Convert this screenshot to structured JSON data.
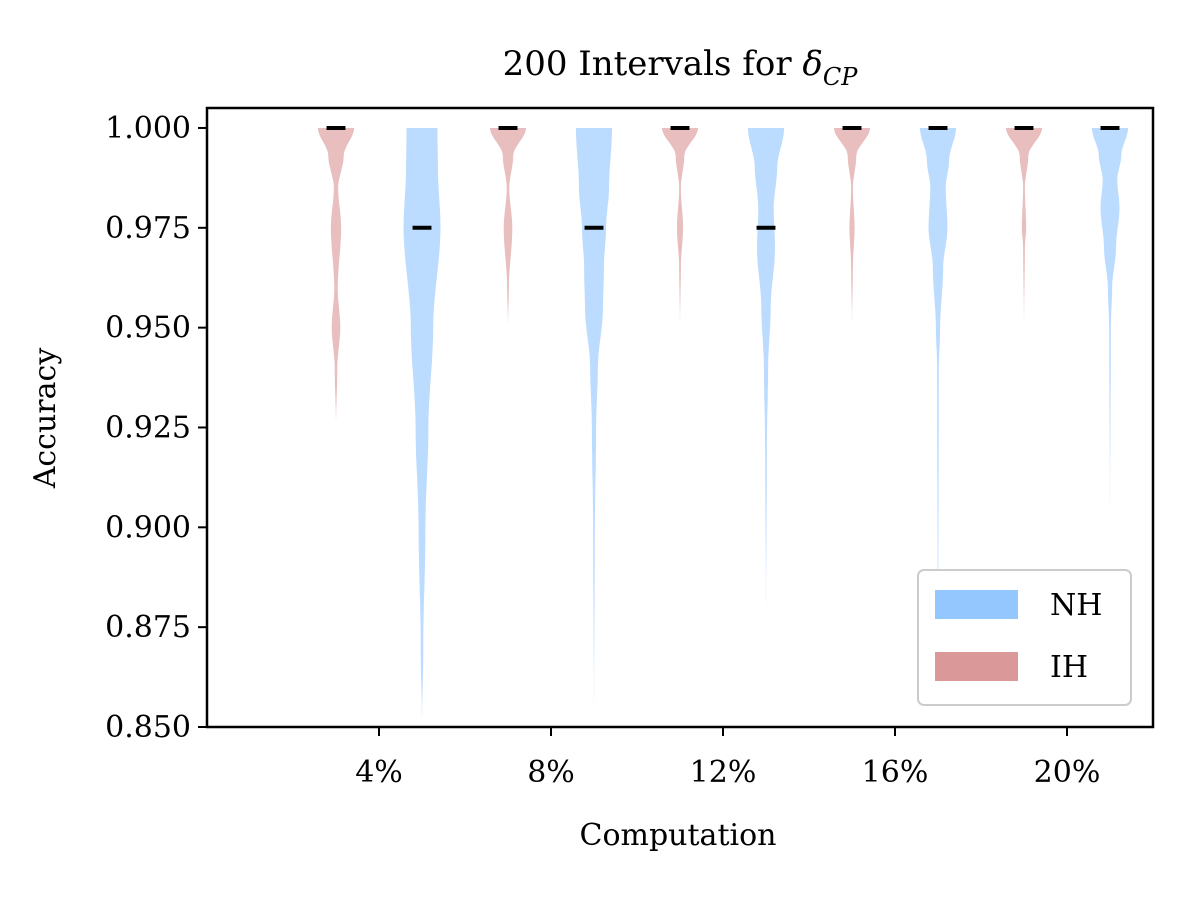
{
  "chart_data": {
    "type": "violin",
    "title_main": "200 Intervals for ",
    "title_symbol": "δ",
    "title_subscript": "CP",
    "xlabel": "Computation",
    "ylabel": "Accuracy",
    "x_ticks": [
      4,
      8,
      12,
      16,
      20
    ],
    "x_tick_labels": [
      "4%",
      "8%",
      "12%",
      "16%",
      "20%"
    ],
    "xlim": [
      0,
      22
    ],
    "ylim": [
      0.85,
      1.005
    ],
    "y_ticks": [
      0.85,
      0.875,
      0.9,
      0.925,
      0.95,
      0.975,
      1.0
    ],
    "y_tick_labels": [
      "0.850",
      "0.875",
      "0.900",
      "0.925",
      "0.950",
      "0.975",
      "1.000"
    ],
    "grid": false,
    "legend_position": "lower-right",
    "series": [
      {
        "name": "NH",
        "color": "#8fc4ff",
        "violins": [
          {
            "x": 5,
            "median": 0.975,
            "profile": [
              [
                0.85,
                0.0
              ],
              [
                0.87,
                0.03
              ],
              [
                0.9,
                0.08
              ],
              [
                0.925,
                0.15
              ],
              [
                0.95,
                0.26
              ],
              [
                0.975,
                0.43
              ],
              [
                0.99,
                0.37
              ],
              [
                1.0,
                0.36
              ]
            ]
          },
          {
            "x": 9,
            "median": 0.975,
            "profile": [
              [
                0.85,
                0.0
              ],
              [
                0.9,
                0.02
              ],
              [
                0.925,
                0.05
              ],
              [
                0.94,
                0.09
              ],
              [
                0.955,
                0.21
              ],
              [
                0.965,
                0.23
              ],
              [
                0.975,
                0.28
              ],
              [
                0.985,
                0.35
              ],
              [
                1.0,
                0.42
              ]
            ]
          },
          {
            "x": 13,
            "median": 0.975,
            "profile": [
              [
                0.875,
                0.0
              ],
              [
                0.92,
                0.02
              ],
              [
                0.94,
                0.05
              ],
              [
                0.955,
                0.11
              ],
              [
                0.97,
                0.21
              ],
              [
                0.98,
                0.18
              ],
              [
                0.99,
                0.26
              ],
              [
                1.0,
                0.42
              ]
            ]
          },
          {
            "x": 17,
            "median": 1.0,
            "profile": [
              [
                0.85,
                0.0
              ],
              [
                0.94,
                0.02
              ],
              [
                0.95,
                0.05
              ],
              [
                0.965,
                0.12
              ],
              [
                0.975,
                0.22
              ],
              [
                0.985,
                0.18
              ],
              [
                0.992,
                0.26
              ],
              [
                1.0,
                0.42
              ]
            ]
          },
          {
            "x": 21,
            "median": 1.0,
            "profile": [
              [
                0.9,
                0.0
              ],
              [
                0.95,
                0.02
              ],
              [
                0.96,
                0.05
              ],
              [
                0.97,
                0.14
              ],
              [
                0.98,
                0.22
              ],
              [
                0.987,
                0.17
              ],
              [
                0.993,
                0.26
              ],
              [
                1.0,
                0.42
              ]
            ]
          }
        ]
      },
      {
        "name": "IH",
        "color": "#d99292",
        "violins": [
          {
            "x": 3,
            "median": 1.0,
            "profile": [
              [
                0.925,
                0.0
              ],
              [
                0.94,
                0.03
              ],
              [
                0.95,
                0.1
              ],
              [
                0.96,
                0.04
              ],
              [
                0.975,
                0.12
              ],
              [
                0.985,
                0.05
              ],
              [
                0.993,
                0.18
              ],
              [
                1.0,
                0.42
              ]
            ]
          },
          {
            "x": 7,
            "median": 1.0,
            "profile": [
              [
                0.95,
                0.0
              ],
              [
                0.96,
                0.02
              ],
              [
                0.975,
                0.1
              ],
              [
                0.985,
                0.03
              ],
              [
                0.993,
                0.12
              ],
              [
                1.0,
                0.42
              ]
            ]
          },
          {
            "x": 11,
            "median": 1.0,
            "profile": [
              [
                0.95,
                0.0
              ],
              [
                0.965,
                0.02
              ],
              [
                0.975,
                0.07
              ],
              [
                0.985,
                0.02
              ],
              [
                0.993,
                0.1
              ],
              [
                1.0,
                0.42
              ]
            ]
          },
          {
            "x": 15,
            "median": 1.0,
            "profile": [
              [
                0.95,
                0.0
              ],
              [
                0.965,
                0.02
              ],
              [
                0.975,
                0.06
              ],
              [
                0.985,
                0.02
              ],
              [
                0.993,
                0.1
              ],
              [
                1.0,
                0.42
              ]
            ]
          },
          {
            "x": 19,
            "median": 1.0,
            "profile": [
              [
                0.95,
                0.0
              ],
              [
                0.97,
                0.02
              ],
              [
                0.975,
                0.05
              ],
              [
                0.985,
                0.02
              ],
              [
                0.993,
                0.1
              ],
              [
                1.0,
                0.42
              ]
            ]
          }
        ]
      }
    ]
  }
}
